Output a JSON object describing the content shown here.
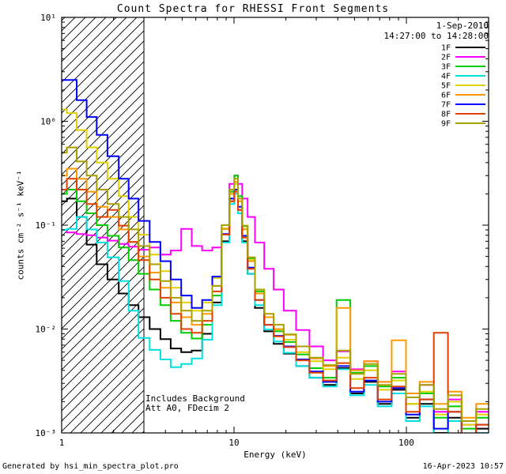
{
  "footer": {
    "generated_by": "Generated by hsi_min_spectra_plot.pro",
    "timestamp": "16-Apr-2023 10:57"
  },
  "chart_data": {
    "type": "line",
    "mode": "histogram-step",
    "title": "Count Spectra for RHESSI Front Segments",
    "xlabel": "Energy (keV)",
    "ylabel": "counts cm⁻² s⁻¹ keV⁻¹",
    "x_scale": "log",
    "y_scale": "log",
    "xlim": [
      1,
      300
    ],
    "ylim": [
      0.001,
      10
    ],
    "grid": false,
    "legend_position": "top-right-inside",
    "annotations": {
      "date": "1-Sep-2010",
      "time_range": "14:27:00 to 14:28:00",
      "background_note": "Includes Background",
      "attenuator_note": "Att A0, FDecim 2"
    },
    "excluded_region": {
      "from": 1,
      "to": 3,
      "style": "hatched"
    },
    "x_ticks": [
      {
        "value": 1,
        "label": "1"
      },
      {
        "value": 10,
        "label": "10"
      },
      {
        "value": 100,
        "label": "100"
      }
    ],
    "y_ticks": [
      {
        "value": 0.001,
        "label": "10⁻³"
      },
      {
        "value": 0.01,
        "label": "10⁻²"
      },
      {
        "value": 0.1,
        "label": "10⁻¹"
      },
      {
        "value": 1,
        "label": "10⁰"
      },
      {
        "value": 10,
        "label": "10¹"
      }
    ],
    "energies_keV": [
      1.0,
      1.15,
      1.3,
      1.5,
      1.7,
      2.0,
      2.3,
      2.6,
      3.0,
      3.5,
      4.0,
      4.6,
      5.3,
      6.1,
      7.0,
      8.0,
      9.0,
      9.8,
      10.3,
      10.8,
      11.5,
      12.5,
      14,
      16,
      18,
      21,
      25,
      30,
      36,
      43,
      52,
      62,
      75,
      90,
      110,
      130,
      160,
      190,
      230,
      280
    ],
    "series": [
      {
        "name": "1F",
        "color": "#000000",
        "values": [
          0.17,
          0.18,
          0.12,
          0.065,
          0.042,
          0.03,
          0.022,
          0.017,
          0.013,
          0.01,
          0.008,
          0.0065,
          0.006,
          0.0062,
          0.009,
          0.018,
          0.07,
          0.17,
          0.21,
          0.14,
          0.07,
          0.034,
          0.016,
          0.0095,
          0.0072,
          0.0058,
          0.0044,
          0.0034,
          0.0029,
          0.0042,
          0.0024,
          0.0031,
          0.0019,
          0.0026,
          0.0014,
          0.0019,
          0.001,
          0.0014,
          0.0008,
          0.0011
        ]
      },
      {
        "name": "2F",
        "color": "#ff00ff",
        "values": [
          0.09,
          0.085,
          0.082,
          0.08,
          0.076,
          0.071,
          0.066,
          0.062,
          0.058,
          0.061,
          0.052,
          0.057,
          0.092,
          0.063,
          0.057,
          0.061,
          0.1,
          0.25,
          0.3,
          0.25,
          0.18,
          0.12,
          0.068,
          0.038,
          0.024,
          0.015,
          0.0098,
          0.0068,
          0.005,
          0.0061,
          0.0041,
          0.0049,
          0.0031,
          0.0039,
          0.0022,
          0.0029,
          0.0016,
          0.0021,
          0.0012,
          0.0016
        ]
      },
      {
        "name": "3F",
        "color": "#00cc00",
        "values": [
          0.2,
          0.22,
          0.17,
          0.13,
          0.1,
          0.079,
          0.061,
          0.046,
          0.034,
          0.024,
          0.017,
          0.012,
          0.0092,
          0.0081,
          0.011,
          0.021,
          0.092,
          0.21,
          0.3,
          0.19,
          0.098,
          0.048,
          0.023,
          0.013,
          0.0095,
          0.0075,
          0.0057,
          0.0042,
          0.0034,
          0.019,
          0.0038,
          0.0044,
          0.0028,
          0.0034,
          0.0019,
          0.0024,
          0.0014,
          0.0018,
          0.0011,
          0.0014
        ]
      },
      {
        "name": "4F",
        "color": "#00e0e0",
        "values": [
          0.09,
          0.092,
          0.12,
          0.091,
          0.068,
          0.049,
          0.029,
          0.015,
          0.0082,
          0.0063,
          0.0051,
          0.0043,
          0.0046,
          0.0052,
          0.0079,
          0.017,
          0.068,
          0.16,
          0.2,
          0.13,
          0.068,
          0.034,
          0.017,
          0.0099,
          0.0076,
          0.0059,
          0.0044,
          0.0034,
          0.0028,
          0.0041,
          0.0023,
          0.0029,
          0.0018,
          0.0024,
          0.0013,
          0.0018,
          0.0009,
          0.0013,
          0.0007,
          0.001
        ]
      },
      {
        "name": "5F",
        "color": "#e0d000",
        "values": [
          1.3,
          1.2,
          0.82,
          0.56,
          0.4,
          0.28,
          0.19,
          0.12,
          0.081,
          0.052,
          0.036,
          0.025,
          0.018,
          0.015,
          0.018,
          0.031,
          0.093,
          0.2,
          0.25,
          0.17,
          0.092,
          0.046,
          0.022,
          0.013,
          0.0099,
          0.0079,
          0.006,
          0.0049,
          0.0041,
          0.0053,
          0.0033,
          0.004,
          0.0026,
          0.0032,
          0.0019,
          0.0025,
          0.0015,
          0.002,
          0.0012,
          0.0015
        ]
      },
      {
        "name": "6F",
        "color": "#ff9900",
        "values": [
          0.3,
          0.35,
          0.28,
          0.21,
          0.15,
          0.12,
          0.091,
          0.069,
          0.05,
          0.035,
          0.025,
          0.018,
          0.013,
          0.011,
          0.014,
          0.026,
          0.092,
          0.2,
          0.26,
          0.17,
          0.091,
          0.045,
          0.022,
          0.013,
          0.01,
          0.0088,
          0.0068,
          0.0052,
          0.0044,
          0.016,
          0.004,
          0.0049,
          0.0031,
          0.0078,
          0.0024,
          0.0031,
          0.0019,
          0.0025,
          0.0014,
          0.0019
        ]
      },
      {
        "name": "7F",
        "color": "#0000ff",
        "values": [
          2.5,
          2.5,
          1.6,
          1.1,
          0.74,
          0.46,
          0.28,
          0.18,
          0.11,
          0.069,
          0.045,
          0.03,
          0.021,
          0.016,
          0.019,
          0.032,
          0.082,
          0.18,
          0.22,
          0.15,
          0.079,
          0.039,
          0.019,
          0.011,
          0.0086,
          0.0068,
          0.0051,
          0.0039,
          0.0031,
          0.0044,
          0.0025,
          0.0032,
          0.002,
          0.0027,
          0.0015,
          0.0021,
          0.0011,
          0.0016,
          0.0009,
          0.0012
        ]
      },
      {
        "name": "8F",
        "color": "#e04000",
        "values": [
          0.22,
          0.28,
          0.22,
          0.16,
          0.12,
          0.14,
          0.099,
          0.069,
          0.046,
          0.03,
          0.02,
          0.014,
          0.01,
          0.0092,
          0.012,
          0.023,
          0.081,
          0.17,
          0.21,
          0.14,
          0.076,
          0.038,
          0.019,
          0.011,
          0.0085,
          0.0067,
          0.005,
          0.0038,
          0.0032,
          0.0047,
          0.0027,
          0.0034,
          0.0021,
          0.0028,
          0.0016,
          0.0021,
          0.0092,
          0.0016,
          0.0009,
          0.0012
        ]
      },
      {
        "name": "9F",
        "color": "#a9a000",
        "values": [
          0.5,
          0.56,
          0.41,
          0.3,
          0.22,
          0.16,
          0.12,
          0.091,
          0.063,
          0.042,
          0.029,
          0.02,
          0.015,
          0.012,
          0.015,
          0.026,
          0.1,
          0.22,
          0.28,
          0.18,
          0.099,
          0.049,
          0.024,
          0.014,
          0.011,
          0.0089,
          0.0068,
          0.0053,
          0.0045,
          0.0062,
          0.0037,
          0.0046,
          0.0029,
          0.0037,
          0.0022,
          0.0029,
          0.0017,
          0.0023,
          0.0013,
          0.0017
        ]
      }
    ]
  }
}
